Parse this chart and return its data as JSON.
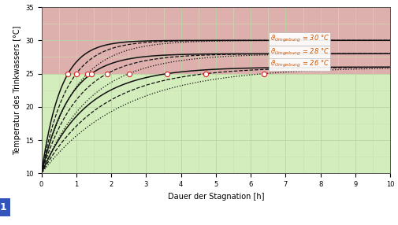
{
  "xlabel": "Dauer der Stagnation [h]",
  "ylabel": "Temperatur des Trinkwassers [°C]",
  "xlim": [
    0,
    10
  ],
  "ylim": [
    10,
    35
  ],
  "xticks": [
    0,
    1,
    2,
    3,
    4,
    5,
    6,
    7,
    8,
    9,
    10
  ],
  "yticks": [
    10,
    15,
    20,
    25,
    30,
    35
  ],
  "threshold_temp": 25,
  "bg_green": "#d4edbc",
  "bg_red": "#ddb0ae",
  "grid_color_major": "#bbd4a4",
  "grid_color_minor": "#cde0b4",
  "T_start": 10.0,
  "line_color": "#111111",
  "line_width": 0.9,
  "marker_color": "white",
  "marker_edge_color": "#dd2222",
  "marker_size": 4.5,
  "figsize": [
    5.06,
    2.86
  ],
  "dpi": 100,
  "label_fontsize": 7,
  "tick_fontsize": 6,
  "legend_fontsize": 6,
  "ambient_groups": [
    {
      "T_amb": 30,
      "tau_values": [
        0.55,
        0.72,
        0.95
      ]
    },
    {
      "T_amb": 28,
      "tau_values": [
        0.8,
        1.05,
        1.4
      ]
    },
    {
      "T_amb": 26,
      "tau_values": [
        1.3,
        1.7,
        2.3
      ]
    }
  ],
  "legend_texts": [
    "= 30 °C",
    "= 28 °C",
    "= 26 °C"
  ],
  "legend_color": "#cc5500"
}
